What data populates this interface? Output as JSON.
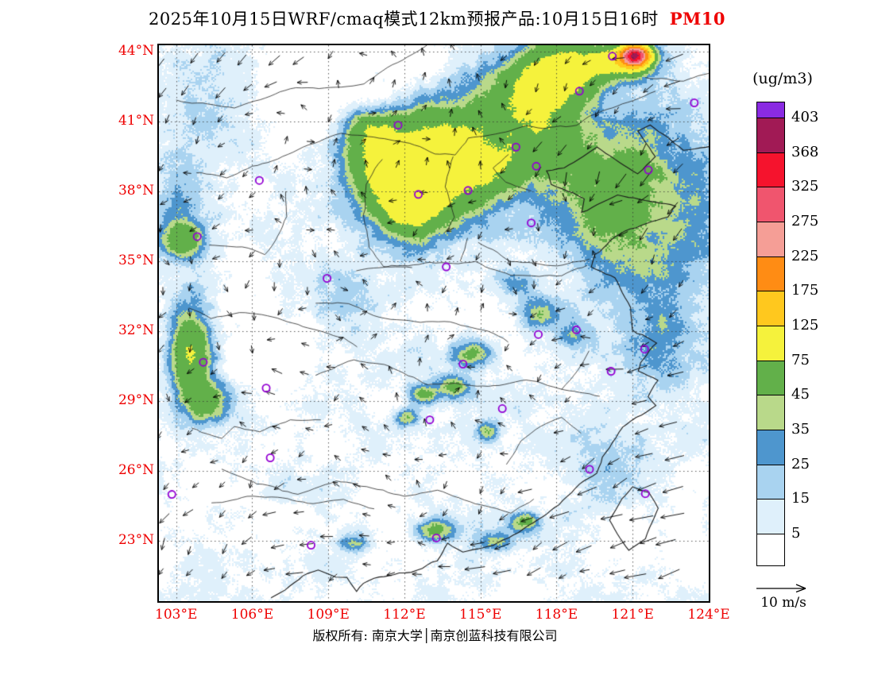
{
  "title": {
    "main": "2025年10月15日WRF/cmaq模式12km预报产品:10月15日16时",
    "species": "PM10",
    "species_color": "#ee0000"
  },
  "axes": {
    "lat_labels": [
      "44°N",
      "41°N",
      "38°N",
      "35°N",
      "32°N",
      "29°N",
      "26°N",
      "23°N"
    ],
    "lat_values": [
      44,
      41,
      38,
      35,
      32,
      29,
      26,
      23
    ],
    "lon_labels": [
      "103°E",
      "106°E",
      "109°E",
      "112°E",
      "115°E",
      "118°E",
      "121°E",
      "124°E"
    ],
    "lon_values": [
      103,
      106,
      109,
      112,
      115,
      118,
      121,
      124
    ],
    "label_color": "#ee0000"
  },
  "colorbar": {
    "unit": "(ug/m3)",
    "levels_top_to_bottom": [
      "403",
      "368",
      "325",
      "275",
      "225",
      "175",
      "125",
      "75",
      "45",
      "35",
      "25",
      "15",
      "5"
    ],
    "colors_top_to_bottom": [
      "#8a2be2",
      "#a11a55",
      "#f5132d",
      "#f0556e",
      "#f59e96",
      "#ff8c14",
      "#ffc81e",
      "#f5f23c",
      "#62b04a",
      "#b9d98a",
      "#4e96ce",
      "#a9d3f0",
      "#dff0fb",
      "#ffffff"
    ]
  },
  "wind_legend": {
    "label": "10 m/s"
  },
  "footer": {
    "text": "版权所有: 南京大学│南京创蓝科技有限公司"
  },
  "map": {
    "marker_color": "#9400d3",
    "boundary_color": "#1a1a1a",
    "lon_range": [
      102.32,
      124.0
    ],
    "lat_range": [
      20.42,
      44.27
    ],
    "city_markers": [
      [
        102.83,
        25.0
      ],
      [
        104.07,
        30.67
      ],
      [
        106.55,
        29.56
      ],
      [
        106.71,
        26.57
      ],
      [
        108.32,
        22.82
      ],
      [
        113.26,
        23.13
      ],
      [
        113.0,
        28.2
      ],
      [
        115.86,
        28.68
      ],
      [
        119.3,
        26.08
      ],
      [
        120.15,
        30.28
      ],
      [
        121.47,
        31.23
      ],
      [
        118.78,
        32.06
      ],
      [
        117.28,
        31.86
      ],
      [
        114.31,
        30.59
      ],
      [
        113.65,
        34.76
      ],
      [
        108.95,
        34.27
      ],
      [
        103.83,
        36.06
      ],
      [
        106.28,
        38.47
      ],
      [
        111.75,
        40.84
      ],
      [
        116.4,
        39.9
      ],
      [
        117.2,
        39.08
      ],
      [
        114.51,
        38.04
      ],
      [
        112.55,
        37.87
      ],
      [
        117.0,
        36.65
      ],
      [
        118.9,
        42.3
      ],
      [
        120.2,
        43.8
      ],
      [
        121.62,
        38.92
      ],
      [
        123.43,
        41.8
      ],
      [
        121.5,
        25.03
      ]
    ]
  }
}
